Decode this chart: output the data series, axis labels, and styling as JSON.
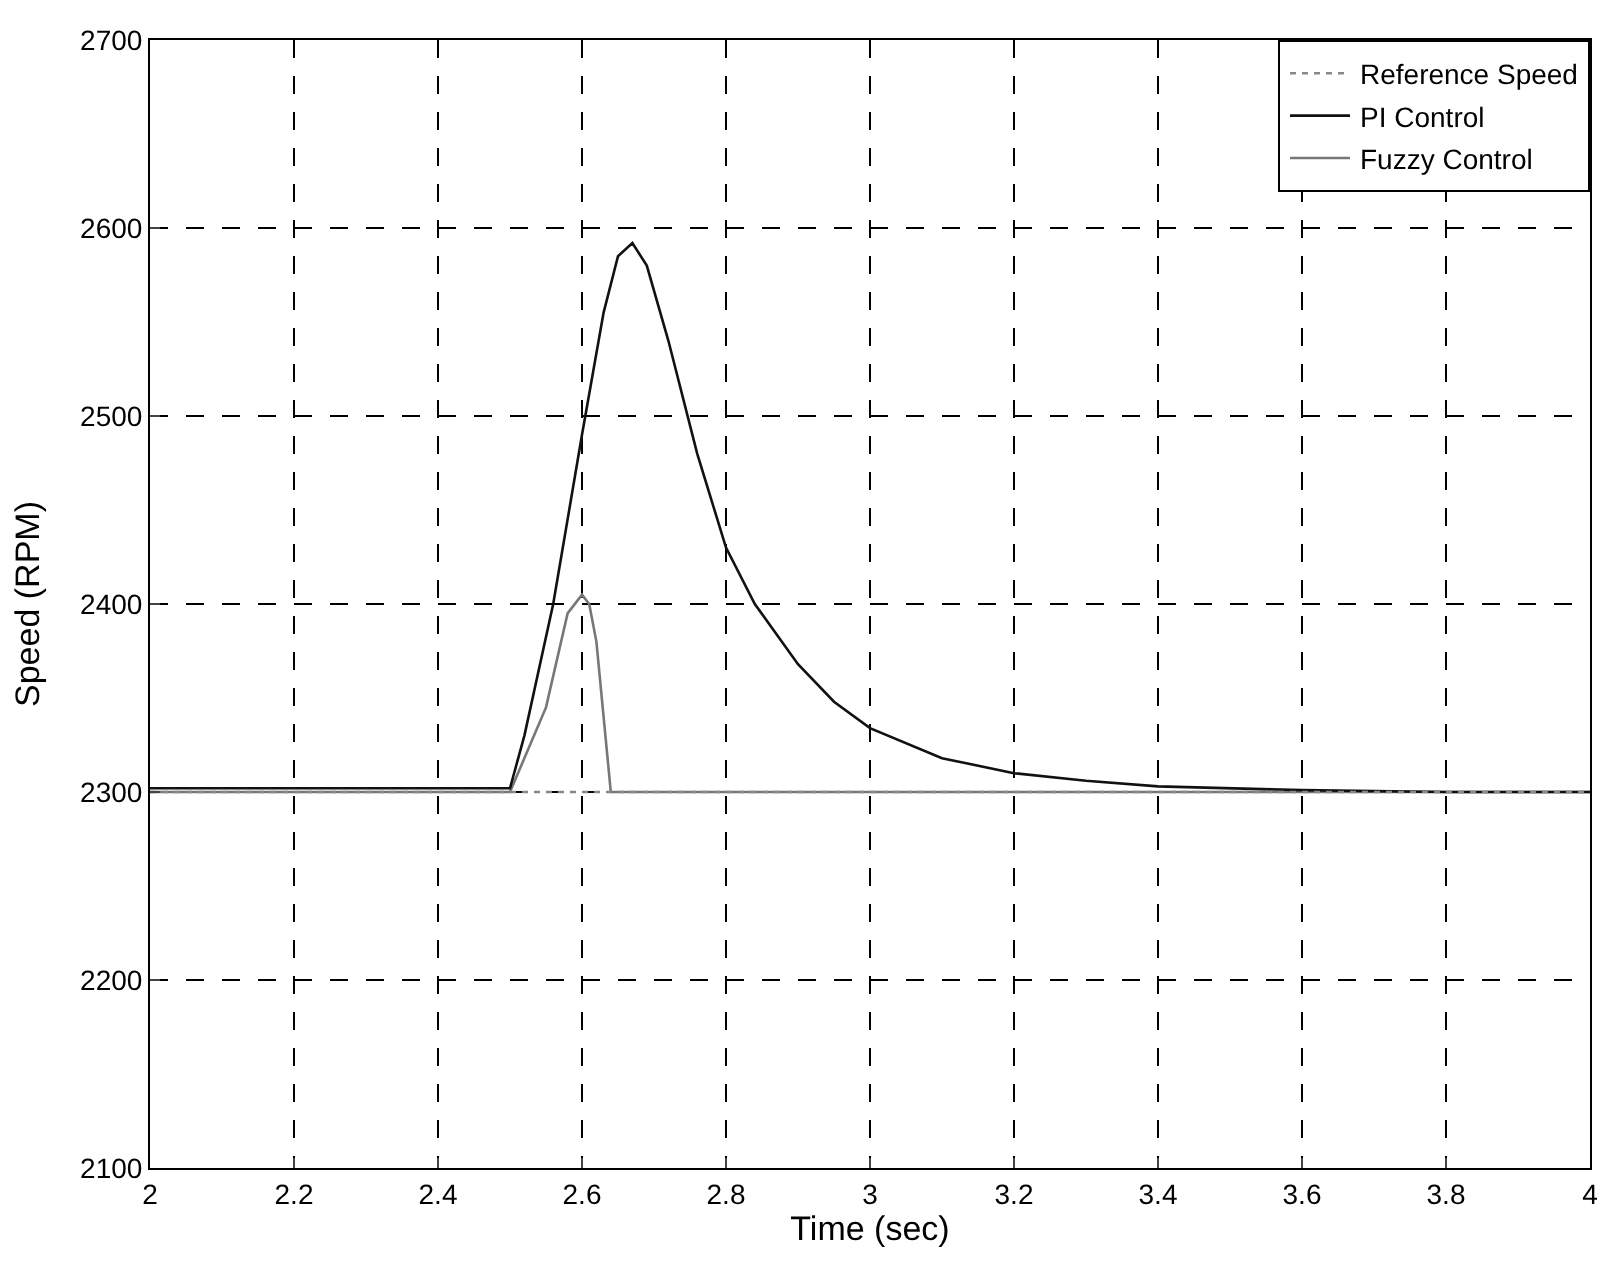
{
  "chart_data": {
    "type": "line",
    "xlabel": "Time (sec)",
    "ylabel": "Speed (RPM)",
    "xlim": [
      2,
      4
    ],
    "ylim": [
      2100,
      2700
    ],
    "xticks": [
      2,
      2.2,
      2.4,
      2.6,
      2.8,
      3,
      3.2,
      3.4,
      3.6,
      3.8,
      4
    ],
    "yticks": [
      2100,
      2200,
      2300,
      2400,
      2500,
      2600,
      2700
    ],
    "grid": true,
    "legend": "top right",
    "series": [
      {
        "name": "Reference Speed",
        "color": "#888888",
        "line_style": "dotted",
        "x": [
          2,
          4
        ],
        "values": [
          2300,
          2300
        ]
      },
      {
        "name": "PI Control",
        "color": "#111111",
        "line_style": "solid",
        "x": [
          2,
          2.3,
          2.5,
          2.52,
          2.56,
          2.6,
          2.63,
          2.65,
          2.67,
          2.69,
          2.72,
          2.76,
          2.8,
          2.84,
          2.9,
          2.95,
          3.0,
          3.1,
          3.2,
          3.3,
          3.4,
          3.6,
          3.8,
          4
        ],
        "values": [
          2302,
          2302,
          2302,
          2330,
          2400,
          2490,
          2555,
          2585,
          2592,
          2580,
          2540,
          2480,
          2430,
          2400,
          2368,
          2348,
          2334,
          2318,
          2310,
          2306,
          2303,
          2301,
          2300,
          2300
        ]
      },
      {
        "name": "Fuzzy Control",
        "color": "#777777",
        "line_style": "solid",
        "x": [
          2,
          2.5,
          2.55,
          2.58,
          2.6,
          2.61,
          2.62,
          2.63,
          2.64,
          4
        ],
        "values": [
          2300,
          2300,
          2345,
          2395,
          2405,
          2400,
          2380,
          2340,
          2300,
          2300
        ]
      }
    ]
  }
}
